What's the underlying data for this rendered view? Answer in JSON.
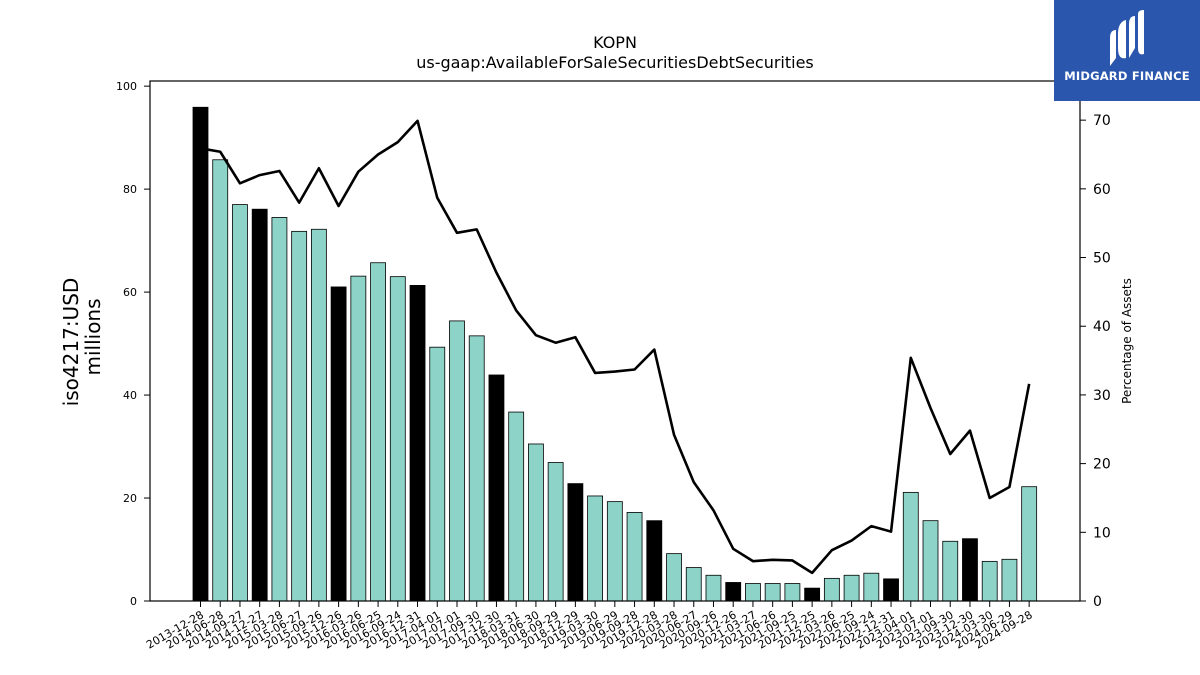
{
  "chart_data": {
    "type": "bar",
    "title": "KOPN",
    "subtitle": "us-gaap:AvailableForSaleSecuritiesDebtSecurities",
    "ylabel": "iso4217:USD",
    "ylabel_line2": "millions",
    "ylabel_right": "Percentage of Assets",
    "ylim": [
      0,
      101
    ],
    "ylim_right": [
      0,
      75.7
    ],
    "yticks": [
      "0",
      "20",
      "40",
      "60",
      "80",
      "100"
    ],
    "yticks_right": [
      "0",
      "10",
      "20",
      "30",
      "40",
      "50",
      "60",
      "70"
    ],
    "grid": false,
    "categories": [
      "2013-12-28",
      "2014-06-28",
      "2014-09-27",
      "2014-12-27",
      "2015-03-28",
      "2015-06-27",
      "2015-09-26",
      "2015-12-26",
      "2016-03-26",
      "2016-06-25",
      "2016-09-24",
      "2016-12-31",
      "2017-04-01",
      "2017-07-01",
      "2017-09-30",
      "2017-12-30",
      "2018-03-31",
      "2018-06-30",
      "2018-09-29",
      "2018-12-29",
      "2019-03-30",
      "2019-06-29",
      "2019-09-28",
      "2019-12-28",
      "2020-03-28",
      "2020-06-27",
      "2020-09-26",
      "2020-12-26",
      "2021-03-27",
      "2021-06-26",
      "2021-09-25",
      "2021-12-25",
      "2022-03-26",
      "2022-06-25",
      "2022-09-24",
      "2022-12-31",
      "2023-04-01",
      "2023-07-01",
      "2023-09-30",
      "2023-12-30",
      "2024-03-30",
      "2024-06-29",
      "2024-09-28"
    ],
    "series": [
      {
        "type": "bar",
        "values": [
          95.9,
          85.7,
          77.0,
          76.1,
          74.5,
          71.8,
          72.2,
          61.0,
          63.1,
          65.7,
          63.0,
          61.3,
          49.3,
          54.4,
          51.5,
          43.9,
          36.7,
          30.5,
          26.9,
          22.8,
          20.4,
          19.3,
          17.2,
          15.6,
          9.2,
          6.5,
          5.0,
          3.6,
          3.4,
          3.4,
          3.4,
          2.5,
          4.4,
          5.0,
          5.4,
          4.3,
          21.1,
          15.6,
          11.6,
          12.1,
          7.7,
          8.1,
          22.2
        ],
        "q4_highlight": [
          true,
          false,
          false,
          true,
          false,
          false,
          false,
          true,
          false,
          false,
          false,
          true,
          false,
          false,
          false,
          true,
          false,
          false,
          false,
          true,
          false,
          false,
          false,
          true,
          false,
          false,
          false,
          true,
          false,
          false,
          false,
          true,
          false,
          false,
          false,
          true,
          false,
          false,
          false,
          true,
          false,
          false,
          false
        ],
        "color": "#8dd3c7",
        "highlight_color": "#000000"
      },
      {
        "type": "line",
        "axis": "right",
        "color": "#000000",
        "values": [
          65.9,
          65.4,
          60.8,
          62.0,
          62.6,
          58.0,
          63.0,
          57.5,
          62.5,
          65.0,
          66.8,
          69.9,
          58.7,
          53.6,
          54.1,
          47.8,
          42.3,
          38.7,
          37.6,
          38.4,
          33.2,
          33.4,
          33.7,
          36.6,
          24.2,
          17.3,
          13.2,
          7.6,
          5.8,
          6.0,
          5.9,
          4.1,
          7.4,
          8.8,
          10.9,
          10.1,
          35.4,
          28.1,
          21.4,
          24.8,
          15.0,
          16.6,
          31.6
        ]
      }
    ]
  },
  "logo": {
    "text": "MIDGARD FINANCE"
  }
}
